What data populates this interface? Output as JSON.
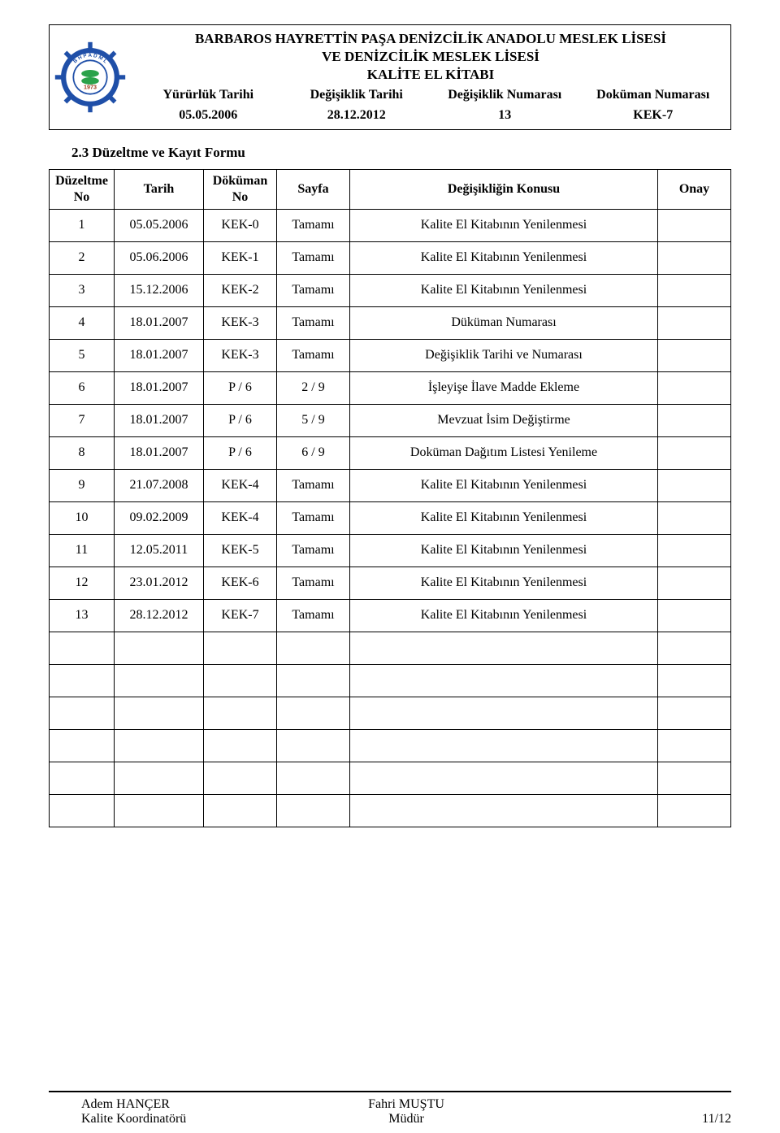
{
  "header": {
    "title_line1": "BARBAROS HAYRETTİN PAŞA DENİZCİLİK ANADOLU MESLEK LİSESİ",
    "title_line2": "VE DENİZCİLİK MESLEK LİSESİ",
    "subtitle": "KALİTE EL KİTABI",
    "meta_labels": {
      "yururluk": "Yürürlük Tarihi",
      "degisiklik_tarihi": "Değişiklik Tarihi",
      "degisiklik_no": "Değişiklik Numarası",
      "dokuman_no": "Doküman Numarası"
    },
    "meta_values": {
      "yururluk": "05.05.2006",
      "degisiklik_tarihi": "28.12.2012",
      "degisiklik_no": "13",
      "dokuman_no": "KEK-7"
    },
    "logo": {
      "text_top": "BHPADML",
      "year": "1973",
      "wheel_color": "#1f4fa8",
      "ring_color": "#ffffff",
      "center_color": "#ffffff",
      "accent_color": "#2aa24a"
    }
  },
  "section_title": "2.3 Düzeltme ve Kayıt Formu",
  "table": {
    "columns": {
      "no": "Düzeltme No",
      "tarih": "Tarih",
      "dokuman": "Döküman No",
      "sayfa": "Sayfa",
      "konu": "Değişikliğin Konusu",
      "onay": "Onay"
    },
    "rows": [
      {
        "no": "1",
        "tarih": "05.05.2006",
        "dok": "KEK-0",
        "sayfa": "Tamamı",
        "konu": "Kalite El Kitabının Yenilenmesi",
        "onay": ""
      },
      {
        "no": "2",
        "tarih": "05.06.2006",
        "dok": "KEK-1",
        "sayfa": "Tamamı",
        "konu": "Kalite El Kitabının Yenilenmesi",
        "onay": ""
      },
      {
        "no": "3",
        "tarih": "15.12.2006",
        "dok": "KEK-2",
        "sayfa": "Tamamı",
        "konu": "Kalite El Kitabının Yenilenmesi",
        "onay": ""
      },
      {
        "no": "4",
        "tarih": "18.01.2007",
        "dok": "KEK-3",
        "sayfa": "Tamamı",
        "konu": "Düküman Numarası",
        "onay": ""
      },
      {
        "no": "5",
        "tarih": "18.01.2007",
        "dok": "KEK-3",
        "sayfa": "Tamamı",
        "konu": "Değişiklik Tarihi ve Numarası",
        "onay": ""
      },
      {
        "no": "6",
        "tarih": "18.01.2007",
        "dok": "P / 6",
        "sayfa": "2 / 9",
        "konu": "İşleyişe İlave Madde Ekleme",
        "onay": ""
      },
      {
        "no": "7",
        "tarih": "18.01.2007",
        "dok": "P / 6",
        "sayfa": "5 / 9",
        "konu": "Mevzuat İsim Değiştirme",
        "onay": ""
      },
      {
        "no": "8",
        "tarih": "18.01.2007",
        "dok": "P / 6",
        "sayfa": "6 / 9",
        "konu": "Doküman Dağıtım Listesi Yenileme",
        "onay": ""
      },
      {
        "no": "9",
        "tarih": "21.07.2008",
        "dok": "KEK-4",
        "sayfa": "Tamamı",
        "konu": "Kalite El Kitabının Yenilenmesi",
        "onay": ""
      },
      {
        "no": "10",
        "tarih": "09.02.2009",
        "dok": "KEK-4",
        "sayfa": "Tamamı",
        "konu": "Kalite El Kitabının Yenilenmesi",
        "onay": ""
      },
      {
        "no": "11",
        "tarih": "12.05.2011",
        "dok": "KEK-5",
        "sayfa": "Tamamı",
        "konu": "Kalite El Kitabının Yenilenmesi",
        "onay": ""
      },
      {
        "no": "12",
        "tarih": "23.01.2012",
        "dok": "KEK-6",
        "sayfa": "Tamamı",
        "konu": "Kalite El Kitabının Yenilenmesi",
        "onay": ""
      },
      {
        "no": "13",
        "tarih": "28.12.2012",
        "dok": "KEK-7",
        "sayfa": "Tamamı",
        "konu": "Kalite El Kitabının Yenilenmesi",
        "onay": ""
      },
      {
        "no": "",
        "tarih": "",
        "dok": "",
        "sayfa": "",
        "konu": "",
        "onay": ""
      },
      {
        "no": "",
        "tarih": "",
        "dok": "",
        "sayfa": "",
        "konu": "",
        "onay": ""
      },
      {
        "no": "",
        "tarih": "",
        "dok": "",
        "sayfa": "",
        "konu": "",
        "onay": ""
      },
      {
        "no": "",
        "tarih": "",
        "dok": "",
        "sayfa": "",
        "konu": "",
        "onay": ""
      },
      {
        "no": "",
        "tarih": "",
        "dok": "",
        "sayfa": "",
        "konu": "",
        "onay": ""
      },
      {
        "no": "",
        "tarih": "",
        "dok": "",
        "sayfa": "",
        "konu": "",
        "onay": ""
      }
    ]
  },
  "footer": {
    "left_name": "Adem HANÇER",
    "left_title": "Kalite Koordinatörü",
    "center_name": "Fahri MUŞTU",
    "center_title": "Müdür",
    "page": "11/12"
  }
}
